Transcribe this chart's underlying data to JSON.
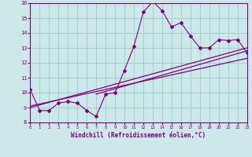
{
  "xlabel": "Windchill (Refroidissement éolien,°C)",
  "bg_color": "#cce8e8",
  "grid_color": "#99cccc",
  "line_color": "#800080",
  "xlim": [
    0,
    23
  ],
  "ylim": [
    8,
    16
  ],
  "xticks": [
    0,
    1,
    2,
    3,
    4,
    5,
    6,
    7,
    8,
    9,
    10,
    11,
    12,
    13,
    14,
    15,
    16,
    17,
    18,
    19,
    20,
    21,
    22,
    23
  ],
  "yticks": [
    8,
    9,
    10,
    11,
    12,
    13,
    14,
    15,
    16
  ],
  "zigzag_x": [
    0,
    1,
    2,
    3,
    4,
    5,
    6,
    7,
    8,
    9,
    10,
    11,
    12,
    13,
    14,
    15,
    16,
    17,
    18,
    19,
    20,
    21,
    22,
    23
  ],
  "zigzag_y": [
    10.2,
    8.8,
    8.8,
    9.3,
    9.4,
    9.3,
    8.8,
    8.4,
    9.9,
    10.0,
    11.5,
    13.1,
    15.4,
    16.1,
    15.5,
    14.4,
    14.7,
    13.8,
    13.0,
    13.0,
    13.55,
    13.5,
    13.55,
    12.7
  ],
  "line1_x": [
    0,
    23
  ],
  "line1_y": [
    9.0,
    13.0
  ],
  "line2_x": [
    0,
    23
  ],
  "line2_y": [
    9.1,
    12.3
  ],
  "line3_x": [
    7,
    23
  ],
  "line3_y": [
    9.9,
    12.8
  ]
}
